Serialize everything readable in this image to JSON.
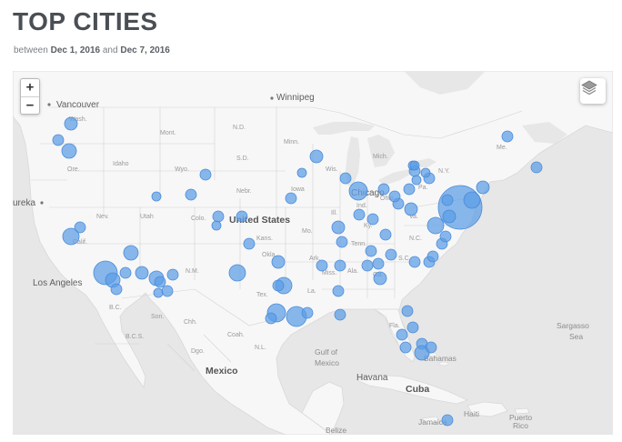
{
  "header": {
    "title": "TOP CITIES",
    "between": "between",
    "start_date": "Dec 1, 2016",
    "and": "and",
    "end_date": "Dec 7, 2016"
  },
  "map": {
    "controls": {
      "zoom_in": "+",
      "zoom_out": "−",
      "layers_icon": "layers-icon"
    },
    "labels": {
      "vancouver": "Vancouver",
      "winnipeg": "Winnipeg",
      "eureka": "ureka",
      "chicago": "Chicago",
      "los_angeles": "Los Angeles",
      "mexico": "Mexico",
      "united_states": "United States",
      "gulf_of_mexico_1": "Gulf of",
      "gulf_of_mexico_2": "Mexico",
      "havana": "Havana",
      "cuba": "Cuba",
      "bahamas": "Bahamas",
      "haiti": "Haiti",
      "puerto_rico_1": "Puerto",
      "puerto_rico_2": "Rico",
      "jamaica": "Jamaica",
      "belize": "Belize",
      "sargasso_1": "Sargasso",
      "sargasso_2": "Sea",
      "wash": "Wash.",
      "mont": "Mont.",
      "nd": "N.D.",
      "minn": "Minn.",
      "sd": "S.D.",
      "idaho": "Idaho",
      "wyo": "Wyo.",
      "ore": "Ore.",
      "nebr": "Nebr.",
      "iowa": "Iowa",
      "nev": "Nev.",
      "utah": "Utah",
      "colo": "Colo.",
      "kans": "Kans.",
      "mo": "Mo.",
      "ill": "Ill.",
      "ind": "Ind.",
      "ohio": "Ohio",
      "pa": "Pa.",
      "calif": "Calif.",
      "nm": "N.M.",
      "okla": "Okla.",
      "ark": "Ark.",
      "tenn": "Tenn.",
      "ky": "Ky.",
      "va": "Va.",
      "nc": "N.C.",
      "sc": "S.C.",
      "miss": "Miss.",
      "ala": "Ala.",
      "ga": "Ga.",
      "la": "La.",
      "tex": "Tex.",
      "son": "Son.",
      "chh": "Chh.",
      "coah": "Coah.",
      "nl": "N.L.",
      "dgo": "Dgo.",
      "bc": "B.C.",
      "bcs": "B.C.S.",
      "fla": "Fla.",
      "wis": "Wis.",
      "mich": "Mich.",
      "ny": "N.Y.",
      "me": "Me."
    },
    "marker_color": "#5b9ce6",
    "marker_fill_opacity": 0.7
  }
}
